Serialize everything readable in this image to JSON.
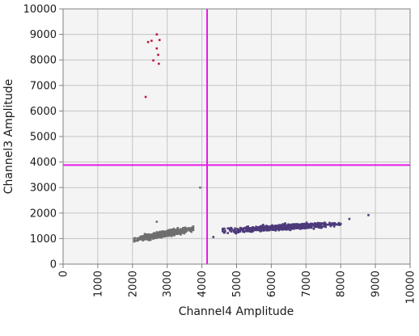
{
  "chart_data": {
    "type": "scatter",
    "title": "",
    "xlabel": "Channel4 Amplitude",
    "ylabel": "Channel3 Amplitude",
    "xlim": [
      0,
      10000
    ],
    "ylim": [
      0,
      10000
    ],
    "x_ticks": [
      "0",
      "1000",
      "2000",
      "3000",
      "4000",
      "5000",
      "6000",
      "7000",
      "8000",
      "9000",
      "10000"
    ],
    "y_ticks": [
      "0",
      "1000",
      "2000",
      "3000",
      "4000",
      "5000",
      "6000",
      "7000",
      "8000",
      "9000",
      "10000"
    ],
    "grid": true,
    "thresholds": {
      "x": 4150,
      "y": 3880,
      "color": "#e619e6"
    },
    "background": "#f4f4f4",
    "series": [
      {
        "color": "#c0143c",
        "points": [
          [
            2450,
            8700
          ],
          [
            2550,
            8750
          ],
          [
            2700,
            9000
          ],
          [
            2780,
            8780
          ],
          [
            2700,
            8450
          ],
          [
            2740,
            8200
          ],
          [
            2600,
            7980
          ],
          [
            2760,
            7850
          ],
          [
            2380,
            6550
          ]
        ]
      },
      {
        "color": "#6e6e6e",
        "clusters": [
          {
            "x_range": [
              2050,
              3750
            ],
            "y_at_start": 960,
            "y_at_end": 1390,
            "spread": 110,
            "count": 550
          }
        ],
        "points": [
          [
            2200,
            1000
          ],
          [
            3000,
            1200
          ],
          [
            2700,
            1660
          ],
          [
            3700,
            1350
          ],
          [
            3950,
            3000
          ]
        ]
      },
      {
        "color": "#4d3a7a",
        "clusters": [
          {
            "x_range": [
              4600,
              8000
            ],
            "y_at_start": 1300,
            "y_at_end": 1580,
            "spread": 100,
            "count": 750
          }
        ],
        "points": [
          [
            4330,
            1060
          ],
          [
            8250,
            1770
          ],
          [
            8800,
            1920
          ],
          [
            4750,
            1400
          ],
          [
            7900,
            1550
          ]
        ]
      }
    ]
  }
}
